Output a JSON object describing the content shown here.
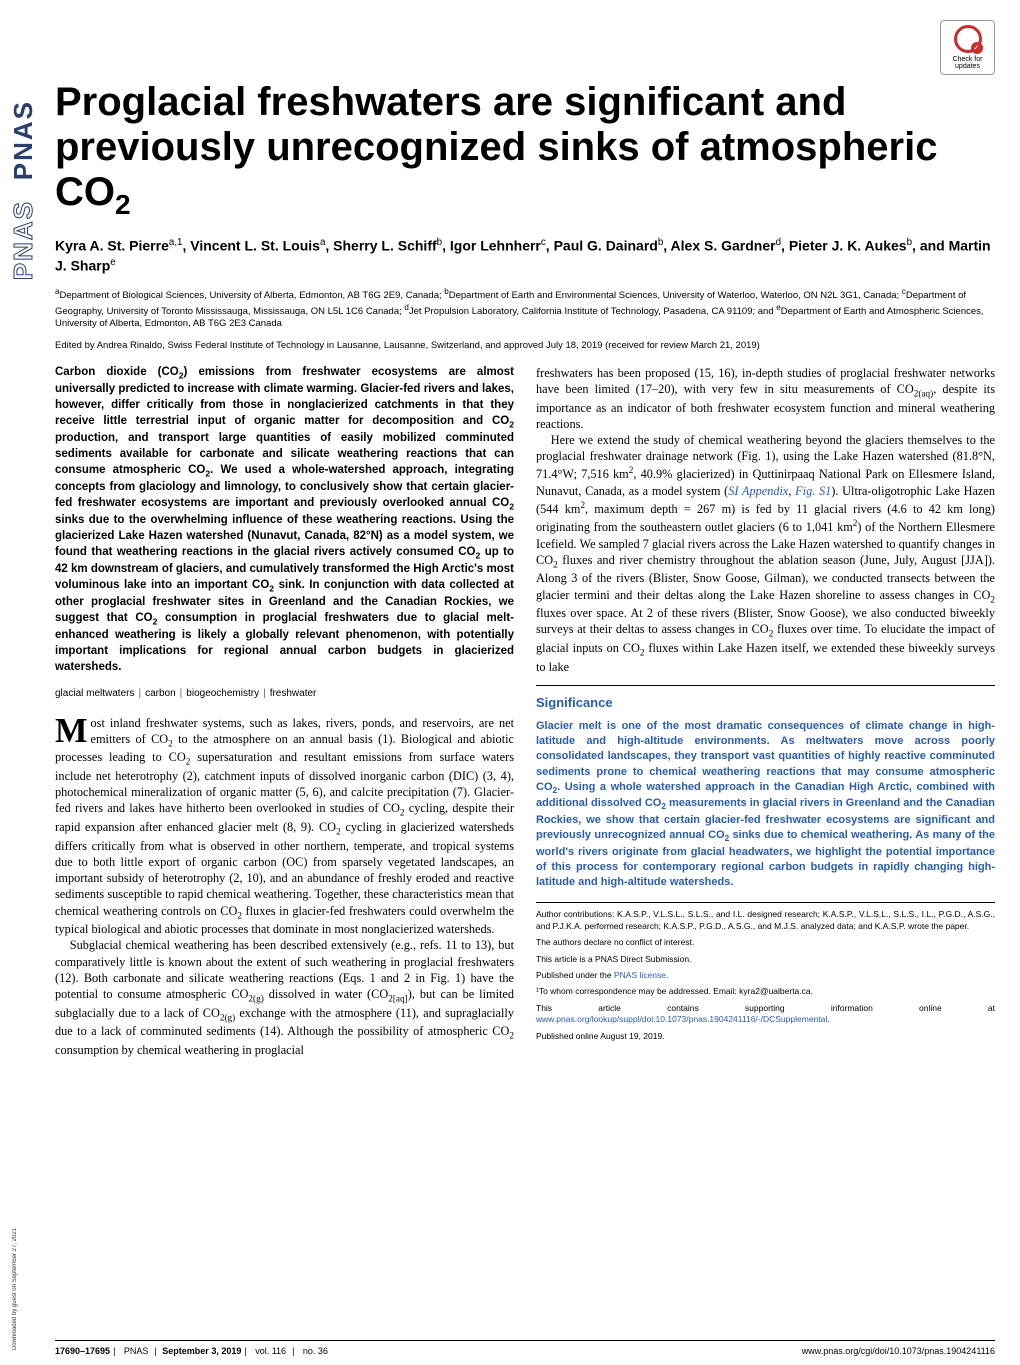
{
  "colors": {
    "text": "#000000",
    "accent_blue": "#2a5caa",
    "pnas_navy": "#2a3f6e",
    "badge_red": "#c72e2e",
    "background": "#ffffff"
  },
  "fonts": {
    "title_family": "Arial Narrow, Arial, sans-serif",
    "title_size_pt": 30,
    "body_family": "Georgia, Times New Roman, serif",
    "body_size_pt": 9,
    "sans_family": "Arial, sans-serif"
  },
  "sidebar": {
    "logo_text": "PNAS",
    "download_note": "Downloaded by guest on September 27, 2021"
  },
  "badge": {
    "label": "Check for updates"
  },
  "title_html": "Proglacial freshwaters are significant and previously unrecognized sinks of atmospheric CO<sub>2</sub>",
  "authors_html": "Kyra A. St. Pierre<sup>a,1</sup>, Vincent L. St. Louis<sup>a</sup>, Sherry L. Schiff<sup>b</sup>, Igor Lehnherr<sup>c</sup>, Paul G. Dainard<sup>b</sup>, Alex S. Gardner<sup>d</sup>, Pieter J. K. Aukes<sup>b</sup>, and Martin J. Sharp<sup>e</sup>",
  "affiliations_html": "<sup>a</sup>Department of Biological Sciences, University of Alberta, Edmonton, AB T6G 2E9, Canada; <sup>b</sup>Department of Earth and Environmental Sciences, University of Waterloo, Waterloo, ON N2L 3G1, Canada; <sup>c</sup>Department of Geography, University of Toronto Mississauga, Mississauga, ON L5L 1C6 Canada; <sup>d</sup>Jet Propulsion Laboratory, California Institute of Technology, Pasadena, CA 91109; and <sup>e</sup>Department of Earth and Atmospheric Sciences, University of Alberta, Edmonton, AB T6G 2E3 Canada",
  "edited": "Edited by Andrea Rinaldo, Swiss Federal Institute of Technology in Lausanne, Lausanne, Switzerland, and approved July 18, 2019 (received for review March 21, 2019)",
  "abstract_html": "Carbon dioxide (CO<sub>2</sub>) emissions from freshwater ecosystems are almost universally predicted to increase with climate warming. Glacier-fed rivers and lakes, however, differ critically from those in nonglacierized catchments in that they receive little terrestrial input of organic matter for decomposition and CO<sub>2</sub> production, and transport large quantities of easily mobilized comminuted sediments available for carbonate and silicate weathering reactions that can consume atmospheric CO<sub>2</sub>. We used a whole-watershed approach, integrating concepts from glaciology and limnology, to conclusively show that certain glacier-fed freshwater ecosystems are important and previously overlooked annual CO<sub>2</sub> sinks due to the overwhelming influence of these weathering reactions. Using the glacierized Lake Hazen watershed (Nunavut, Canada, 82°N) as a model system, we found that weathering reactions in the glacial rivers actively consumed CO<sub>2</sub> up to 42 km downstream of glaciers, and cumulatively transformed the High Arctic's most voluminous lake into an important CO<sub>2</sub> sink. In conjunction with data collected at other proglacial freshwater sites in Greenland and the Canadian Rockies, we suggest that CO<sub>2</sub> consumption in proglacial freshwaters due to glacial melt-enhanced weathering is likely a globally relevant phenomenon, with potentially important implications for regional annual carbon budgets in glacierized watersheds.",
  "keywords": [
    "glacial meltwaters",
    "carbon",
    "biogeochemistry",
    "freshwater"
  ],
  "body_left_paragraphs_html": [
    "Most inland freshwater systems, such as lakes, rivers, ponds, and reservoirs, are net emitters of CO<sub>2</sub> to the atmosphere on an annual basis (1). Biological and abiotic processes leading to CO<sub>2</sub> supersaturation and resultant emissions from surface waters include net heterotrophy (2), catchment inputs of dissolved inorganic carbon (DIC) (3, 4), photochemical mineralization of organic matter (5, 6), and calcite precipitation (7). Glacier-fed rivers and lakes have hitherto been overlooked in studies of CO<sub>2</sub> cycling, despite their rapid expansion after enhanced glacier melt (8, 9). CO<sub>2</sub> cycling in glacierized watersheds differs critically from what is observed in other northern, temperate, and tropical systems due to both little export of organic carbon (OC) from sparsely vegetated landscapes, an important subsidy of heterotrophy (2, 10), and an abundance of freshly eroded and reactive sediments susceptible to rapid chemical weathering. Together, these characteristics mean that chemical weathering controls on CO<sub>2</sub> fluxes in glacier-fed freshwaters could overwhelm the typical biological and abiotic processes that dominate in most nonglacierized watersheds.",
    "Subglacial chemical weathering has been described extensively (e.g., refs. 11 to 13), but comparatively little is known about the extent of such weathering in proglacial freshwaters (12). Both carbonate and silicate weathering reactions (Eqs. 1 and 2 in Fig. 1) have the potential to consume atmospheric CO<sub>2(g)</sub> dissolved in water (CO<sub>2[aq]</sub>), but can be limited subglacially due to a lack of CO<sub>2(g)</sub> exchange with the atmosphere (11), and supraglacially due to a lack of comminuted sediments (14). Although the possibility of atmospheric CO<sub>2</sub> consumption by chemical weathering in proglacial"
  ],
  "body_right_paragraphs_html": [
    "freshwaters has been proposed (15, 16), in-depth studies of proglacial freshwater networks have been limited (17–20), with very few in situ measurements of CO<sub>2(aq)</sub>, despite its importance as an indicator of both freshwater ecosystem function and mineral weathering reactions.",
    "Here we extend the study of chemical weathering beyond the glaciers themselves to the proglacial freshwater drainage network (Fig. 1), using the Lake Hazen watershed (81.8°N, 71.4°W; 7,516 km<sup>2</sup>, 40.9% glacierized) in Quttinirpaaq National Park on Ellesmere Island, Nunavut, Canada, as a model system (<span class=\"link\">SI Appendix</span>, <span class=\"link\">Fig. S1</span>). Ultra-oligotrophic Lake Hazen (544 km<sup>2</sup>, maximum depth = 267 m) is fed by 11 glacial rivers (4.6 to 42 km long) originating from the southeastern outlet glaciers (6 to 1,041 km<sup>2</sup>) of the Northern Ellesmere Icefield. We sampled 7 glacial rivers across the Lake Hazen watershed to quantify changes in CO<sub>2</sub> fluxes and river chemistry throughout the ablation season (June, July, August [JJA]). Along 3 of the rivers (Blister, Snow Goose, Gilman), we conducted transects between the glacier termini and their deltas along the Lake Hazen shoreline to assess changes in CO<sub>2</sub> fluxes over space. At 2 of these rivers (Blister, Snow Goose), we also conducted biweekly surveys at their deltas to assess changes in CO<sub>2</sub> fluxes over time. To elucidate the impact of glacial inputs on CO<sub>2</sub> fluxes within Lake Hazen itself, we extended these biweekly surveys to lake"
  ],
  "significance": {
    "title": "Significance",
    "body_html": "Glacier melt is one of the most dramatic consequences of climate change in high-latitude and high-altitude environments. As meltwaters move across poorly consolidated landscapes, they transport vast quantities of highly reactive comminuted sediments prone to chemical weathering reactions that may consume atmospheric CO<sub>2</sub>. Using a whole watershed approach in the Canadian High Arctic, combined with additional dissolved CO<sub>2</sub> measurements in glacial rivers in Greenland and the Canadian Rockies, we show that certain glacier-fed freshwater ecosystems are significant and previously unrecognized annual CO<sub>2</sub> sinks due to chemical weathering. As many of the world's rivers originate from glacial headwaters, we highlight the potential importance of this process for contemporary regional carbon budgets in rapidly changing high-latitude and high-altitude watersheds."
  },
  "meta": {
    "contributions": "Author contributions: K.A.S.P., V.L.S.L., S.L.S., and I.L. designed research; K.A.S.P., V.L.S.L., S.L.S., I.L., P.G.D., A.S.G., and P.J.K.A. performed research; K.A.S.P., P.G.D., A.S.G., and M.J.S. analyzed data; and K.A.S.P. wrote the paper.",
    "conflict": "The authors declare no conflict of interest.",
    "direct": "This article is a PNAS Direct Submission.",
    "license_prefix": "Published under the ",
    "license_link": "PNAS license",
    "license_suffix": ".",
    "corr_prefix": "¹To whom correspondence may be addressed. Email: ",
    "corr_email": "kyra2@ualberta.ca.",
    "si_prefix": "This article contains supporting information online at ",
    "si_link": "www.pnas.org/lookup/suppl/doi:10.1073/pnas.1904241116/-/DCSupplemental",
    "si_suffix": ".",
    "pub_online": "Published online August 19, 2019."
  },
  "footer": {
    "pages": "17690–17695",
    "journal": "PNAS",
    "date": "September 3, 2019",
    "vol": "vol. 116",
    "no": "no. 36",
    "doi": "www.pnas.org/cgi/doi/10.1073/pnas.1904241116"
  }
}
